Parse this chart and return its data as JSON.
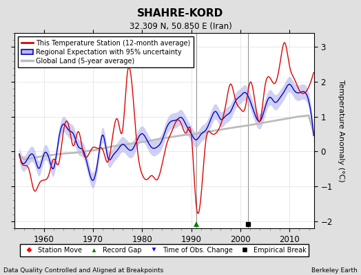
{
  "title": "SHAHRE-KORD",
  "subtitle": "32.309 N, 50.850 E (Iran)",
  "ylabel": "Temperature Anomaly (°C)",
  "footer_left": "Data Quality Controlled and Aligned at Breakpoints",
  "footer_right": "Berkeley Earth",
  "xlim": [
    1954,
    2015
  ],
  "ylim": [
    -2.2,
    3.4
  ],
  "yticks": [
    -2,
    -1,
    0,
    1,
    2,
    3
  ],
  "xticks": [
    1960,
    1970,
    1980,
    1990,
    2000,
    2010
  ],
  "background_color": "#e0e0e0",
  "plot_bg_color": "#ffffff",
  "red_color": "#dd0000",
  "blue_color": "#0000cc",
  "blue_fill_color": "#b8b8ee",
  "gray_color": "#bbbbbb",
  "vertical_lines": [
    1991.0,
    2001.5
  ],
  "green_triangle_x": 1991.0,
  "black_square_x": 2001.5,
  "legend_items": [
    "This Temperature Station (12-month average)",
    "Regional Expectation with 95% uncertainty",
    "Global Land (5-year average)"
  ]
}
